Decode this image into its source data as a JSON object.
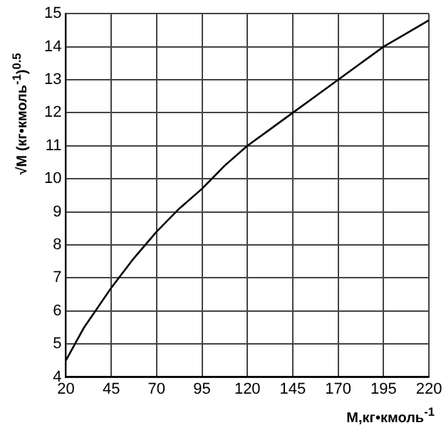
{
  "chart_data": {
    "type": "line",
    "xlabel": "M,кг•кмоль$^{-1}$",
    "ylabel": "√M (кг•кмоль$^{-1}$)$^{0.5}$",
    "x": [
      20,
      25,
      30,
      35,
      40,
      45,
      57.5,
      70,
      82.5,
      95,
      107.5,
      120,
      132.5,
      145,
      157.5,
      170,
      182.5,
      195,
      207.5,
      220
    ],
    "series": [
      {
        "color": "#000000",
        "values": [
          4.5,
          5.0,
          5.5,
          5.9,
          6.3,
          6.7,
          7.6,
          8.4,
          9.1,
          9.7,
          10.4,
          11.0,
          11.5,
          12.0,
          12.5,
          13.0,
          13.5,
          14.0,
          14.4,
          14.8
        ]
      }
    ],
    "xlim": [
      20,
      220
    ],
    "xticks": [
      20,
      45,
      70,
      95,
      120,
      145,
      170,
      195,
      220
    ],
    "ylim": [
      4,
      15
    ],
    "yticks": [
      4,
      5,
      6,
      7,
      8,
      9,
      10,
      11,
      12,
      13,
      14,
      15
    ],
    "grid": true,
    "legend": false,
    "marker": "none",
    "line_style": "solid"
  }
}
